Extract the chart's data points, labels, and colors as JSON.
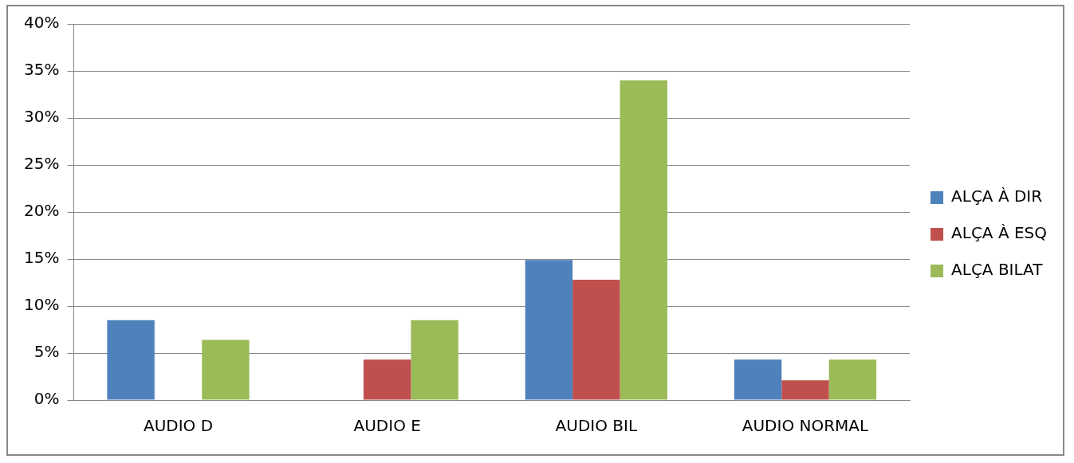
{
  "chart_data": {
    "type": "bar",
    "categories": [
      "AUDIO D",
      "AUDIO E",
      "AUDIO BIL",
      "AUDIO NORMAL"
    ],
    "series": [
      {
        "name": "ALÇA À DIR",
        "color": "#4f81bd",
        "values": [
          8.5,
          0,
          14.9,
          4.3
        ]
      },
      {
        "name": "ALÇA À ESQ",
        "color": "#c0504d",
        "values": [
          0,
          4.3,
          12.8,
          2.1
        ]
      },
      {
        "name": "ALÇA BILAT",
        "color": "#9bbb59",
        "values": [
          6.4,
          8.5,
          34.0,
          4.3
        ]
      }
    ],
    "ylim": [
      0,
      40
    ],
    "yticks": [
      {
        "value": 0,
        "label": "0%"
      },
      {
        "value": 5,
        "label": "5%"
      },
      {
        "value": 10,
        "label": "10%"
      },
      {
        "value": 15,
        "label": "15%"
      },
      {
        "value": 20,
        "label": "20%"
      },
      {
        "value": 25,
        "label": "25%"
      },
      {
        "value": 30,
        "label": "30%"
      },
      {
        "value": 35,
        "label": "35%"
      },
      {
        "value": 40,
        "label": "40%"
      }
    ],
    "grid": "y",
    "legend": "right"
  }
}
